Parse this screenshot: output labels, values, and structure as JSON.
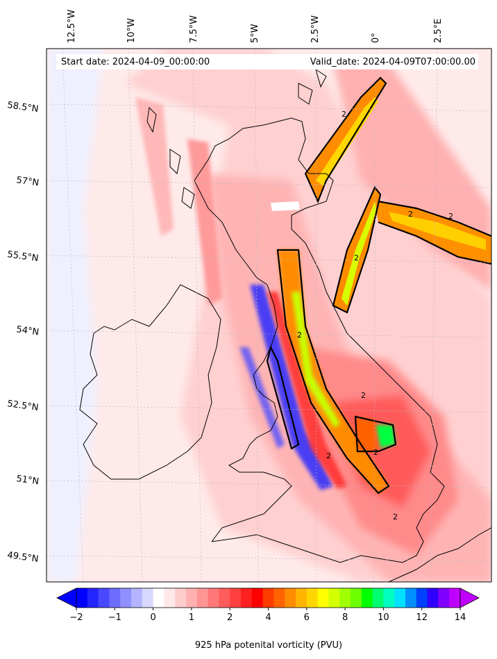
{
  "header": {
    "start_date": "Start date: 2024-04-09_00:00:00",
    "valid_date": "Valid_date: 2024-04-09T07:00:00.00"
  },
  "lon_labels": [
    "12.5°W",
    "10°W",
    "7.5°W",
    "5°W",
    "2.5°W",
    "0°",
    "2.5°E"
  ],
  "lat_labels": [
    "58.5°N",
    "57°N",
    "55.5°N",
    "54°N",
    "52.5°N",
    "51°N",
    "49.5°N"
  ],
  "colorbar": {
    "title": "925 hPa potenital vorticity (PVU)",
    "tick_labels": [
      "−2",
      "−1",
      "0",
      "1",
      "2",
      "4",
      "6",
      "8",
      "10",
      "12",
      "14"
    ],
    "colors": [
      "#0000ff",
      "#2424ff",
      "#4848ff",
      "#6c6cff",
      "#9090ff",
      "#b4b4ff",
      "#d8d8ff",
      "#ffffff",
      "#ffe8e8",
      "#ffcccc",
      "#ffb0b0",
      "#ff9494",
      "#ff7878",
      "#ff5c5c",
      "#ff4040",
      "#ff2020",
      "#ff0000",
      "#ff3c00",
      "#ff6400",
      "#ff8c00",
      "#ffb400",
      "#ffd700",
      "#ffff00",
      "#d4ff00",
      "#a0ff00",
      "#6cff00",
      "#00ff00",
      "#00ff70",
      "#00ffc0",
      "#00e0ff",
      "#0090ff",
      "#0040ff",
      "#3000ff",
      "#8000ff",
      "#c000ff"
    ],
    "extend_left_color": "#0000ff",
    "extend_right_color": "#c000ff"
  },
  "contour_labels": [
    "2",
    "2",
    "2",
    "2",
    "2",
    "2",
    "2",
    "2",
    "2"
  ]
}
